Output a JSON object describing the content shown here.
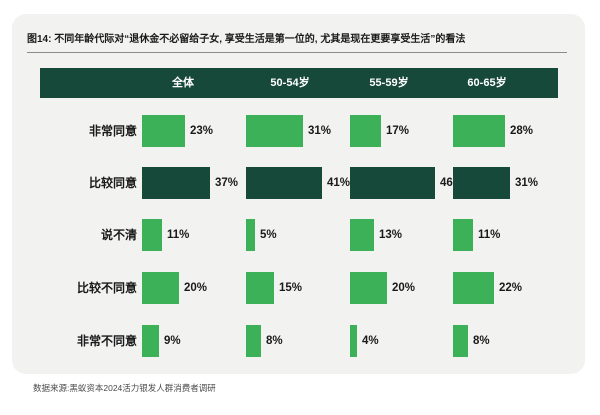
{
  "title": "图14: 不同年龄代际对“退休金不必留给子女, 享受生活是第一位的, 尤其是现在更要享受生活”的看法",
  "source": "数据来源:黑蚁资本2024活力银发人群消费者调研",
  "colors": {
    "card_bg": "#f2f2f1",
    "dark_green": "#17493a",
    "mid_green": "#3cb158",
    "header_text": "#ffffff",
    "text": "#1a1a1a"
  },
  "chart_data": {
    "type": "bar",
    "orientation": "horizontal",
    "unit": "%",
    "grid": false,
    "legend": false,
    "categories": [
      "非常同意",
      "比较同意",
      "说不清",
      "比较不同意",
      "非常不同意"
    ],
    "series": [
      {
        "name": "全体",
        "values": [
          23,
          37,
          11,
          20,
          9
        ]
      },
      {
        "name": "50-54岁",
        "values": [
          31,
          41,
          5,
          15,
          8
        ]
      },
      {
        "name": "55-59岁",
        "values": [
          17,
          46,
          13,
          20,
          4
        ]
      },
      {
        "name": "60-65岁",
        "values": [
          28,
          31,
          11,
          22,
          8
        ]
      }
    ],
    "emphasized_row": "比较同意",
    "value_range": [
      0,
      50
    ]
  }
}
